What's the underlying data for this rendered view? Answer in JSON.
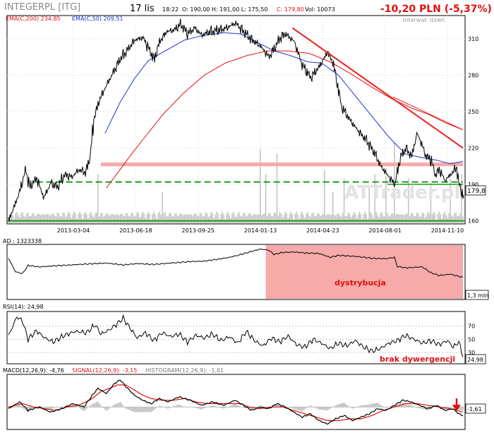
{
  "header": {
    "ticker": "INTEGERPL [ITG]",
    "date": "17 lis",
    "time": "18:22",
    "quote_text": "O: 190,00  H: 191,00  L: 175,50",
    "close_text": "C: 179,80",
    "volume_text": "Vol: 10073",
    "change": "-10,20 PLN (-5,37%)",
    "interval": "Interwał: dzień",
    "watermark": "ATTrader.pl"
  },
  "colors": {
    "price": "#000000",
    "ema200": "#e01010",
    "ema50": "#2030d0",
    "trend": "#ee2020",
    "support": "#1e9a1e",
    "zone": "#f6aaaa",
    "volume": "#bdbdbd",
    "macd": "#000000",
    "signal": "#e01010",
    "histogram": "#bdbdbd"
  },
  "chart_data": [
    {
      "type": "line",
      "name": "price",
      "legend": [
        {
          "name": "EMA(C,200)",
          "value": "234,85"
        },
        {
          "name": "EMA(C,50)",
          "value": "209,51"
        }
      ],
      "xticks": [
        "2013-03-04",
        "2013-06-18",
        "2013-09-25",
        "2014-01-13",
        "2014-04-23",
        "2014-08-01",
        "2014-11-10"
      ],
      "yticks": [
        160,
        190,
        220,
        250,
        280,
        310
      ],
      "ylim": [
        158,
        328
      ],
      "last_value_label": "179,8",
      "price_anchors": [
        [
          0,
          161
        ],
        [
          4,
          172
        ],
        [
          8,
          185
        ],
        [
          12,
          202
        ],
        [
          15,
          188
        ],
        [
          20,
          195
        ],
        [
          25,
          179
        ],
        [
          30,
          191
        ],
        [
          35,
          188
        ],
        [
          40,
          198
        ],
        [
          45,
          196
        ],
        [
          50,
          202
        ],
        [
          55,
          200
        ],
        [
          58,
          212
        ],
        [
          61,
          245
        ],
        [
          65,
          260
        ],
        [
          70,
          272
        ],
        [
          75,
          283
        ],
        [
          80,
          294
        ],
        [
          85,
          301
        ],
        [
          90,
          309
        ],
        [
          96,
          311
        ],
        [
          100,
          302
        ],
        [
          104,
          293
        ],
        [
          108,
          308
        ],
        [
          113,
          316
        ],
        [
          118,
          317
        ],
        [
          123,
          322
        ],
        [
          128,
          314
        ],
        [
          133,
          319
        ],
        [
          138,
          313
        ],
        [
          144,
          316
        ],
        [
          150,
          317
        ],
        [
          156,
          319
        ],
        [
          162,
          323
        ],
        [
          168,
          316
        ],
        [
          174,
          309
        ],
        [
          180,
          304
        ],
        [
          186,
          295
        ],
        [
          190,
          302
        ],
        [
          194,
          311
        ],
        [
          198,
          314
        ],
        [
          204,
          308
        ],
        [
          210,
          288
        ],
        [
          216,
          278
        ],
        [
          222,
          287
        ],
        [
          228,
          299
        ],
        [
          232,
          290
        ],
        [
          238,
          254
        ],
        [
          244,
          243
        ],
        [
          250,
          234
        ],
        [
          256,
          226
        ],
        [
          262,
          215
        ],
        [
          266,
          205
        ],
        [
          272,
          196
        ],
        [
          276,
          190
        ],
        [
          280,
          212
        ],
        [
          284,
          220
        ],
        [
          288,
          213
        ],
        [
          292,
          232
        ],
        [
          295,
          224
        ],
        [
          298,
          214
        ],
        [
          302,
          210
        ],
        [
          305,
          198
        ],
        [
          308,
          202
        ],
        [
          312,
          193
        ],
        [
          316,
          198
        ],
        [
          320,
          204
        ],
        [
          322,
          190
        ],
        [
          325,
          180
        ]
      ],
      "ema50_anchors": [
        [
          69,
          232
        ],
        [
          80,
          258
        ],
        [
          90,
          277
        ],
        [
          100,
          292
        ],
        [
          112,
          300
        ],
        [
          126,
          309
        ],
        [
          140,
          313
        ],
        [
          154,
          315
        ],
        [
          166,
          314
        ],
        [
          178,
          307
        ],
        [
          190,
          300
        ],
        [
          202,
          296
        ],
        [
          214,
          291
        ],
        [
          224,
          290
        ],
        [
          236,
          280
        ],
        [
          248,
          263
        ],
        [
          260,
          246
        ],
        [
          272,
          229
        ],
        [
          284,
          215
        ],
        [
          296,
          212
        ],
        [
          306,
          210
        ],
        [
          316,
          207
        ],
        [
          325,
          209
        ]
      ],
      "ema200_anchors": [
        [
          70,
          187
        ],
        [
          90,
          218
        ],
        [
          110,
          247
        ],
        [
          125,
          265
        ],
        [
          140,
          280
        ],
        [
          155,
          290
        ],
        [
          170,
          296
        ],
        [
          185,
          300
        ],
        [
          200,
          300
        ],
        [
          215,
          298
        ],
        [
          230,
          291
        ],
        [
          245,
          281
        ],
        [
          260,
          270
        ],
        [
          275,
          260
        ],
        [
          290,
          252
        ],
        [
          300,
          248
        ],
        [
          312,
          241
        ],
        [
          325,
          235
        ]
      ],
      "trend_line": [
        [
          203,
          319
        ],
        [
          325,
          220
        ]
      ],
      "trend_line_2": [
        [
          275,
          262
        ],
        [
          325,
          235
        ]
      ],
      "support_line": [
        [
          20,
          192
        ],
        [
          325,
          192
        ]
      ],
      "support_line_2": [
        [
          271,
          190
        ],
        [
          325,
          190
        ]
      ],
      "resistance_zone": [
        205,
        208
      ],
      "resistance_zone_start": 66,
      "volume_spikes": [
        [
          64,
          0.55
        ],
        [
          110,
          0.35
        ],
        [
          180,
          0.83
        ],
        [
          184,
          0.55
        ],
        [
          192,
          0.78
        ],
        [
          226,
          0.6
        ],
        [
          232,
          0.35
        ],
        [
          240,
          0.5
        ],
        [
          258,
          0.4
        ],
        [
          262,
          0.55
        ],
        [
          270,
          0.62
        ],
        [
          276,
          0.9
        ],
        [
          286,
          0.5
        ],
        [
          302,
          0.45
        ],
        [
          316,
          0.5
        ],
        [
          324,
          0.55
        ]
      ]
    },
    {
      "type": "area",
      "name": "AD",
      "title": "AD",
      "value": "1323338",
      "last_value_label": "1,3 mln",
      "annotation": "dystrybucja",
      "distribution_zone": [
        184,
        325
      ],
      "ylim": [
        0,
        100
      ],
      "anchors": [
        [
          0,
          20
        ],
        [
          5,
          48
        ],
        [
          10,
          52
        ],
        [
          14,
          35
        ],
        [
          22,
          38
        ],
        [
          32,
          36
        ],
        [
          44,
          34
        ],
        [
          56,
          32
        ],
        [
          70,
          30
        ],
        [
          82,
          34
        ],
        [
          92,
          31
        ],
        [
          104,
          33
        ],
        [
          116,
          30
        ],
        [
          130,
          27
        ],
        [
          140,
          26
        ],
        [
          150,
          22
        ],
        [
          158,
          18
        ],
        [
          164,
          14
        ],
        [
          170,
          9
        ],
        [
          176,
          4
        ],
        [
          180,
          1
        ],
        [
          186,
          3
        ],
        [
          190,
          12
        ],
        [
          196,
          8
        ],
        [
          204,
          7
        ],
        [
          212,
          9
        ],
        [
          222,
          10
        ],
        [
          230,
          18
        ],
        [
          236,
          14
        ],
        [
          248,
          16
        ],
        [
          260,
          20
        ],
        [
          270,
          21
        ],
        [
          276,
          18
        ],
        [
          278,
          37
        ],
        [
          284,
          40
        ],
        [
          296,
          38
        ],
        [
          302,
          50
        ],
        [
          308,
          56
        ],
        [
          316,
          53
        ],
        [
          325,
          60
        ]
      ]
    },
    {
      "type": "line",
      "name": "RSI(14)",
      "title": "RSI(14)",
      "value": "24,98",
      "last_value_label": "24,98",
      "levels": [
        30,
        50,
        70
      ],
      "ylim": [
        15,
        90
      ],
      "annotation": "brak dywergencji",
      "anchors": [
        [
          0,
          55
        ],
        [
          6,
          84
        ],
        [
          10,
          78
        ],
        [
          14,
          50
        ],
        [
          20,
          63
        ],
        [
          26,
          52
        ],
        [
          32,
          46
        ],
        [
          40,
          56
        ],
        [
          48,
          62
        ],
        [
          56,
          60
        ],
        [
          62,
          72
        ],
        [
          66,
          58
        ],
        [
          72,
          64
        ],
        [
          78,
          74
        ],
        [
          82,
          82
        ],
        [
          86,
          70
        ],
        [
          92,
          52
        ],
        [
          98,
          60
        ],
        [
          104,
          48
        ],
        [
          110,
          60
        ],
        [
          116,
          54
        ],
        [
          122,
          58
        ],
        [
          128,
          46
        ],
        [
          134,
          56
        ],
        [
          140,
          52
        ],
        [
          146,
          58
        ],
        [
          152,
          48
        ],
        [
          158,
          54
        ],
        [
          164,
          44
        ],
        [
          170,
          62
        ],
        [
          176,
          48
        ],
        [
          182,
          40
        ],
        [
          188,
          52
        ],
        [
          194,
          46
        ],
        [
          200,
          55
        ],
        [
          206,
          42
        ],
        [
          212,
          38
        ],
        [
          218,
          50
        ],
        [
          224,
          44
        ],
        [
          230,
          36
        ],
        [
          236,
          44
        ],
        [
          242,
          40
        ],
        [
          248,
          48
        ],
        [
          254,
          38
        ],
        [
          260,
          32
        ],
        [
          266,
          36
        ],
        [
          272,
          44
        ],
        [
          278,
          48
        ],
        [
          284,
          56
        ],
        [
          290,
          50
        ],
        [
          296,
          44
        ],
        [
          302,
          48
        ],
        [
          308,
          42
        ],
        [
          314,
          48
        ],
        [
          318,
          38
        ],
        [
          322,
          46
        ],
        [
          325,
          25
        ]
      ]
    },
    {
      "type": "line",
      "name": "MACD(12,26,9)",
      "title": "MACD(12,26,9)",
      "value": "-4,76",
      "signal_title": "SIGNAL(12,26,9)",
      "signal_value": "-3,15",
      "histogram_title": "HISTOGRAM(12,26,9)",
      "histogram_value": "-1,61",
      "last_value_label": "-1,61",
      "ylim": [
        -12,
        18
      ],
      "macd_anchors": [
        [
          0,
          -1
        ],
        [
          8,
          3
        ],
        [
          14,
          -2
        ],
        [
          22,
          0
        ],
        [
          30,
          -3
        ],
        [
          38,
          -1
        ],
        [
          46,
          2
        ],
        [
          54,
          0
        ],
        [
          60,
          7
        ],
        [
          64,
          11
        ],
        [
          70,
          8
        ],
        [
          76,
          14
        ],
        [
          80,
          16
        ],
        [
          84,
          12
        ],
        [
          90,
          7
        ],
        [
          96,
          4
        ],
        [
          102,
          2
        ],
        [
          108,
          5
        ],
        [
          114,
          3
        ],
        [
          122,
          6
        ],
        [
          130,
          4
        ],
        [
          138,
          1
        ],
        [
          146,
          3
        ],
        [
          154,
          1
        ],
        [
          162,
          4
        ],
        [
          168,
          1
        ],
        [
          174,
          -2
        ],
        [
          180,
          0
        ],
        [
          186,
          -1
        ],
        [
          192,
          2
        ],
        [
          198,
          0
        ],
        [
          204,
          -3
        ],
        [
          210,
          -6
        ],
        [
          216,
          -4
        ],
        [
          222,
          -8
        ],
        [
          228,
          -10
        ],
        [
          234,
          -7
        ],
        [
          240,
          -5
        ],
        [
          246,
          -8
        ],
        [
          252,
          -6
        ],
        [
          258,
          -4
        ],
        [
          264,
          -1
        ],
        [
          270,
          -2
        ],
        [
          276,
          1
        ],
        [
          282,
          4
        ],
        [
          288,
          3
        ],
        [
          294,
          1
        ],
        [
          300,
          -1
        ],
        [
          306,
          1
        ],
        [
          312,
          -2
        ],
        [
          318,
          -1
        ],
        [
          322,
          -4
        ],
        [
          325,
          -5
        ]
      ],
      "signal_anchors": [
        [
          0,
          0
        ],
        [
          10,
          2
        ],
        [
          18,
          0
        ],
        [
          26,
          -1
        ],
        [
          34,
          -2
        ],
        [
          42,
          0
        ],
        [
          50,
          1
        ],
        [
          58,
          4
        ],
        [
          66,
          9
        ],
        [
          72,
          11
        ],
        [
          78,
          13
        ],
        [
          84,
          13
        ],
        [
          90,
          10
        ],
        [
          96,
          7
        ],
        [
          102,
          5
        ],
        [
          110,
          4
        ],
        [
          118,
          4
        ],
        [
          126,
          5
        ],
        [
          134,
          3
        ],
        [
          142,
          2
        ],
        [
          150,
          2
        ],
        [
          158,
          2
        ],
        [
          166,
          2
        ],
        [
          172,
          0
        ],
        [
          180,
          -1
        ],
        [
          188,
          0
        ],
        [
          196,
          0
        ],
        [
          204,
          -2
        ],
        [
          212,
          -4
        ],
        [
          220,
          -6
        ],
        [
          228,
          -8
        ],
        [
          236,
          -8
        ],
        [
          244,
          -7
        ],
        [
          252,
          -7
        ],
        [
          260,
          -5
        ],
        [
          268,
          -2
        ],
        [
          276,
          0
        ],
        [
          284,
          2
        ],
        [
          292,
          2
        ],
        [
          300,
          1
        ],
        [
          308,
          0
        ],
        [
          316,
          -1
        ],
        [
          325,
          -3
        ]
      ]
    }
  ]
}
